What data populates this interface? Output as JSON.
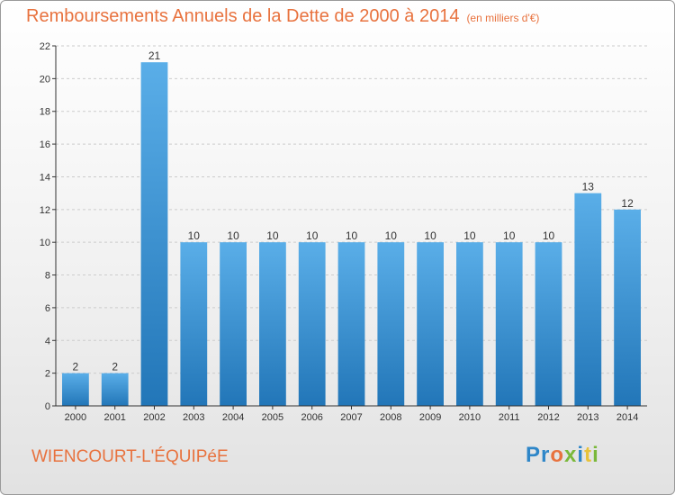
{
  "chart_title": "Remboursements Annuels de la Dette de 2000 à 2014",
  "chart_unit": "(en milliers d'€)",
  "location_label": "WIENCOURT-L'ÉQUIPéE",
  "brand": "Proxiti",
  "colors": {
    "title": "#e8723e",
    "bar_top": "#5aaee8",
    "bar_bottom": "#2276b8",
    "grid": "#cccccc",
    "axis": "#333333"
  },
  "chart_data": {
    "type": "bar",
    "categories": [
      "2000",
      "2001",
      "2002",
      "2003",
      "2004",
      "2005",
      "2006",
      "2007",
      "2008",
      "2009",
      "2010",
      "2011",
      "2012",
      "2013",
      "2014"
    ],
    "values": [
      2,
      2,
      21,
      10,
      10,
      10,
      10,
      10,
      10,
      10,
      10,
      10,
      10,
      13,
      12
    ],
    "data_labels": [
      "2",
      "2",
      "21",
      "10",
      "10",
      "10",
      "10",
      "10",
      "10",
      "10",
      "10",
      "10",
      "10",
      "13",
      "12"
    ],
    "title": "Remboursements Annuels de la Dette de 2000 à 2014",
    "xlabel": "",
    "ylabel": "",
    "ylim": [
      0,
      22
    ],
    "yticks": [
      0,
      2,
      4,
      6,
      8,
      10,
      12,
      14,
      16,
      18,
      20,
      22
    ],
    "grid": true,
    "legend": "none"
  }
}
